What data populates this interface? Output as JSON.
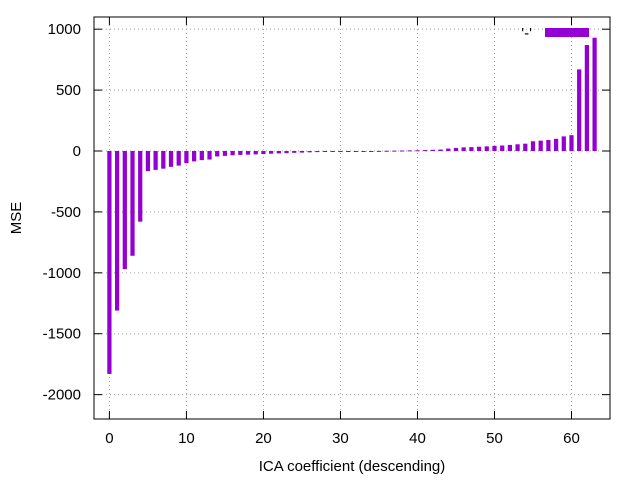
{
  "chart_data": {
    "type": "bar",
    "xlabel": "ICA coefficient (descending)",
    "ylabel": "MSE",
    "xlim": [
      -2,
      65
    ],
    "ylim": [
      -2200,
      1100
    ],
    "xticks": [
      0,
      10,
      20,
      30,
      40,
      50,
      60
    ],
    "xtick_labels": [
      "0",
      "10",
      "20",
      "30",
      "40",
      "50",
      "60"
    ],
    "yticks": [
      -2000,
      -1500,
      -1000,
      -500,
      0,
      500,
      1000
    ],
    "ytick_labels": [
      "-2000",
      "-1500",
      "-1000",
      "-500",
      "0",
      "500",
      "1000"
    ],
    "grid": true,
    "legend_position": "top-right",
    "bar_color": "#9400d3",
    "series": [
      {
        "name": "'-'",
        "x": [
          0,
          1,
          2,
          3,
          4,
          5,
          6,
          7,
          8,
          9,
          10,
          11,
          12,
          13,
          14,
          15,
          16,
          17,
          18,
          19,
          20,
          21,
          22,
          23,
          24,
          25,
          26,
          27,
          28,
          29,
          30,
          31,
          32,
          33,
          34,
          35,
          36,
          37,
          38,
          39,
          40,
          41,
          42,
          43,
          44,
          45,
          46,
          47,
          48,
          49,
          50,
          51,
          52,
          53,
          54,
          55,
          56,
          57,
          58,
          59,
          60,
          61,
          62,
          63
        ],
        "values": [
          -1830,
          -1310,
          -970,
          -860,
          -580,
          -165,
          -155,
          -145,
          -130,
          -120,
          -100,
          -85,
          -75,
          -70,
          -45,
          -40,
          -35,
          -32,
          -30,
          -28,
          -25,
          -22,
          -20,
          -18,
          -15,
          -13,
          -11,
          -9,
          -7,
          -5,
          -4,
          -3,
          -2,
          -1,
          0,
          1,
          2,
          3,
          4,
          5,
          6,
          8,
          10,
          12,
          20,
          25,
          30,
          32,
          35,
          38,
          42,
          45,
          50,
          55,
          60,
          80,
          85,
          90,
          100,
          120,
          130,
          670,
          870,
          930
        ]
      }
    ]
  }
}
